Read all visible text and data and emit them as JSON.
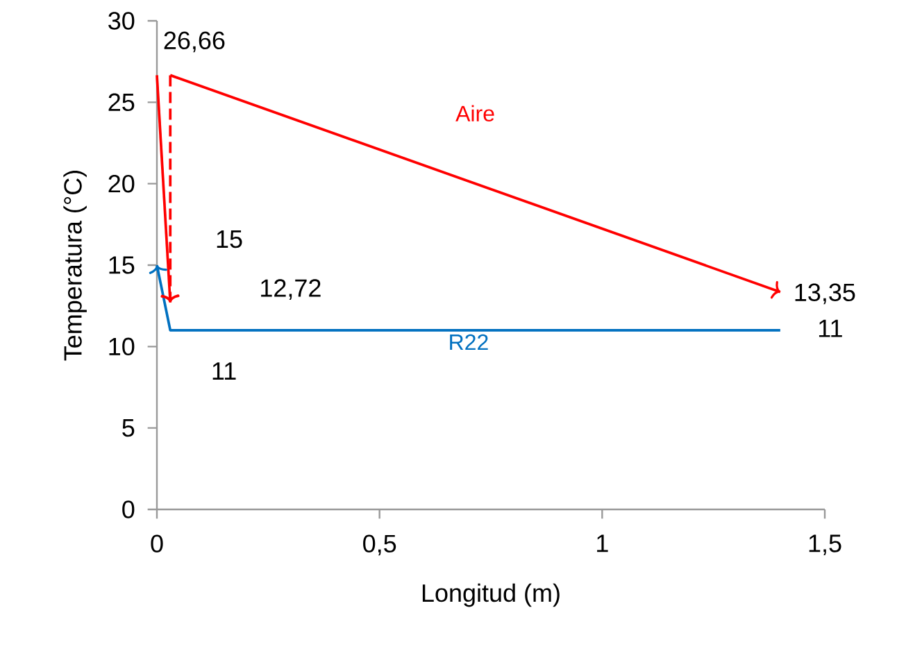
{
  "chart_data": {
    "type": "line",
    "xlabel": "Longitud (m)",
    "ylabel": "Temperatura (°C)",
    "series": [
      {
        "color": "#ff0000",
        "x": [
          0,
          0.03
        ],
        "values": [
          26.66,
          12.72
        ]
      },
      {
        "color": "#ff0000",
        "x": [
          0.03,
          0.03
        ],
        "values": [
          26.66,
          12.72
        ],
        "line_style": "dashed"
      },
      {
        "name": "Aire",
        "color": "#ff0000",
        "x": [
          0.03,
          1.4
        ],
        "values": [
          26.66,
          13.35
        ]
      },
      {
        "name": "R22",
        "color": "#0070c0",
        "x": [
          1.4,
          0.03,
          0
        ],
        "values": [
          11,
          11,
          15
        ]
      }
    ],
    "xlim": [
      0,
      1.5
    ],
    "ylim": [
      0,
      30
    ],
    "xticks": [
      0,
      {
        "value": 0.5,
        "label": "0,5"
      },
      1,
      {
        "value": 1.5,
        "label": "1,5"
      }
    ],
    "yticks": [
      0,
      5,
      10,
      15,
      20,
      25,
      30
    ],
    "annotations": [
      {
        "text": "26,66",
        "x": 0.03,
        "y": 26.66
      },
      {
        "text": "15",
        "x": 0,
        "y": 15
      },
      "12,72",
      {
        "text": "11",
        "x": 0.03,
        "y": 11
      },
      {
        "text": "13,35",
        "x": 1.4,
        "y": 13.35
      },
      {
        "text": "11",
        "x": 1.4,
        "y": 11
      }
    ]
  }
}
